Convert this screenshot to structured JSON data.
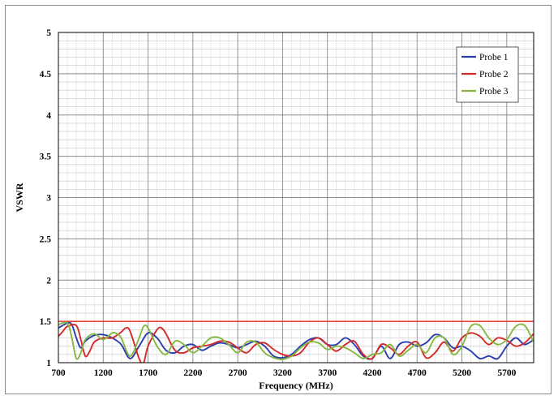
{
  "chart_data": {
    "type": "line",
    "title": "",
    "xlabel": "Frequency (MHz)",
    "ylabel": "VSWR",
    "xlim": [
      700,
      6000
    ],
    "ylim": [
      1,
      5
    ],
    "x_ticks": [
      700,
      1200,
      1700,
      2200,
      2700,
      3200,
      3700,
      4200,
      4700,
      5200,
      5700
    ],
    "x_tick_labels": [
      "700",
      "1200",
      "1700",
      "2200",
      "2700",
      "3200",
      "3700",
      "4200",
      "4700",
      "5200",
      "5700"
    ],
    "y_ticks": [
      1,
      1.5,
      2,
      2.5,
      3,
      3.5,
      4,
      4.5,
      5
    ],
    "y_tick_labels": [
      "1",
      "1.5",
      "2",
      "2.5",
      "3",
      "3.5",
      "4",
      "4.5",
      "5"
    ],
    "grid": true,
    "legend_position": "top-right",
    "reference_line": {
      "y": 1.5,
      "color": "#e8312a"
    },
    "series": [
      {
        "name": "Probe 1",
        "color": "#2b3fae",
        "x": [
          700,
          800,
          850,
          900,
          950,
          1000,
          1100,
          1200,
          1300,
          1400,
          1500,
          1600,
          1700,
          1800,
          1900,
          2000,
          2100,
          2200,
          2300,
          2400,
          2500,
          2600,
          2700,
          2800,
          2900,
          3000,
          3100,
          3200,
          3300,
          3400,
          3500,
          3600,
          3700,
          3800,
          3900,
          4000,
          4100,
          4200,
          4300,
          4400,
          4500,
          4600,
          4700,
          4800,
          4900,
          5000,
          5100,
          5200,
          5300,
          5400,
          5500,
          5600,
          5700,
          5800,
          5900,
          6000
        ],
        "y": [
          1.42,
          1.48,
          1.46,
          1.3,
          1.18,
          1.26,
          1.33,
          1.34,
          1.3,
          1.22,
          1.05,
          1.2,
          1.36,
          1.3,
          1.15,
          1.12,
          1.2,
          1.22,
          1.15,
          1.2,
          1.24,
          1.22,
          1.18,
          1.22,
          1.26,
          1.2,
          1.08,
          1.06,
          1.1,
          1.2,
          1.28,
          1.3,
          1.22,
          1.22,
          1.3,
          1.22,
          1.08,
          1.05,
          1.2,
          1.05,
          1.22,
          1.25,
          1.2,
          1.24,
          1.34,
          1.3,
          1.18,
          1.2,
          1.14,
          1.05,
          1.08,
          1.05,
          1.2,
          1.3,
          1.22,
          1.28
        ]
      },
      {
        "name": "Probe 2",
        "color": "#d42a2a",
        "x": [
          700,
          750,
          800,
          900,
          950,
          1000,
          1050,
          1100,
          1200,
          1300,
          1400,
          1450,
          1500,
          1600,
          1650,
          1700,
          1800,
          1850,
          1900,
          2000,
          2100,
          2200,
          2300,
          2400,
          2500,
          2600,
          2700,
          2800,
          2900,
          3000,
          3100,
          3200,
          3300,
          3400,
          3500,
          3600,
          3700,
          3800,
          3900,
          4000,
          4100,
          4200,
          4300,
          4400,
          4500,
          4600,
          4700,
          4800,
          4900,
          5000,
          5100,
          5200,
          5300,
          5400,
          5500,
          5600,
          5700,
          5800,
          5900,
          6000
        ],
        "y": [
          1.32,
          1.38,
          1.44,
          1.45,
          1.28,
          1.08,
          1.14,
          1.25,
          1.3,
          1.3,
          1.37,
          1.42,
          1.38,
          1.05,
          1.0,
          1.2,
          1.4,
          1.42,
          1.35,
          1.15,
          1.12,
          1.18,
          1.2,
          1.22,
          1.26,
          1.25,
          1.18,
          1.12,
          1.22,
          1.24,
          1.16,
          1.1,
          1.08,
          1.12,
          1.25,
          1.3,
          1.22,
          1.14,
          1.22,
          1.26,
          1.1,
          1.05,
          1.22,
          1.18,
          1.1,
          1.2,
          1.25,
          1.06,
          1.12,
          1.25,
          1.14,
          1.3,
          1.36,
          1.32,
          1.22,
          1.3,
          1.27,
          1.2,
          1.24,
          1.35
        ]
      },
      {
        "name": "Probe 3",
        "color": "#86b840",
        "x": [
          700,
          800,
          850,
          900,
          950,
          1000,
          1100,
          1200,
          1300,
          1350,
          1400,
          1500,
          1600,
          1650,
          1700,
          1800,
          1900,
          2000,
          2100,
          2200,
          2300,
          2400,
          2500,
          2600,
          2700,
          2800,
          2900,
          3000,
          3100,
          3200,
          3300,
          3400,
          3500,
          3600,
          3700,
          3800,
          3900,
          4000,
          4100,
          4200,
          4300,
          4400,
          4500,
          4600,
          4700,
          4800,
          4900,
          5000,
          5100,
          5200,
          5300,
          5400,
          5500,
          5600,
          5700,
          5800,
          5900,
          6000
        ],
        "y": [
          1.46,
          1.48,
          1.3,
          1.05,
          1.12,
          1.28,
          1.35,
          1.28,
          1.36,
          1.35,
          1.3,
          1.08,
          1.3,
          1.44,
          1.42,
          1.2,
          1.1,
          1.26,
          1.22,
          1.12,
          1.2,
          1.3,
          1.3,
          1.22,
          1.12,
          1.25,
          1.25,
          1.12,
          1.06,
          1.04,
          1.08,
          1.18,
          1.25,
          1.24,
          1.16,
          1.2,
          1.18,
          1.12,
          1.05,
          1.1,
          1.12,
          1.22,
          1.08,
          1.15,
          1.22,
          1.12,
          1.3,
          1.3,
          1.1,
          1.2,
          1.44,
          1.45,
          1.3,
          1.22,
          1.28,
          1.44,
          1.45,
          1.25
        ]
      }
    ]
  }
}
